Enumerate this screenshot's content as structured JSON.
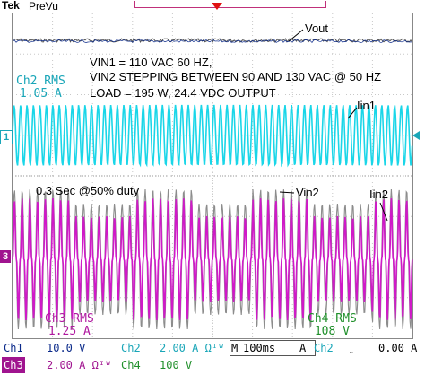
{
  "header": {
    "brand": "Tek",
    "mode": "PreVu"
  },
  "annotations": {
    "vout": "Vout",
    "line1": "VIN1 = 110 VAC 60 HZ,",
    "line2": "VIN2 STEPPING BETWEEN 90 AND 130 VAC @ 50 HZ",
    "line3": "LOAD = 195 W, 24.4 VDC OUTPUT",
    "iin1": "Iin1",
    "duty": "0.3 Sec @50% duty",
    "vin2": "Vin2",
    "iin2": "Iin2"
  },
  "measurements": {
    "ch2_rms_label": "Ch2 RMS",
    "ch2_rms_value": "1.05 A",
    "ch3_rms_label": "Ch3 RMS",
    "ch3_rms_value": "1.25 A",
    "ch4_rms_label": "Ch4 RMS",
    "ch4_rms_value": "108 V"
  },
  "channel_markers": {
    "ch1": "1",
    "ch3": "3"
  },
  "status_bar": {
    "ch1_label": "Ch1",
    "ch1_scale": "10.0 V",
    "ch2_label": "Ch2",
    "ch2_scale": "2.00 A Ωᴵᵂ",
    "ch3_label": "Ch3",
    "ch3_scale": "2.00 A Ωᴵᵂ",
    "ch4_label": "Ch4",
    "ch4_scale": "100 V",
    "timebase_label": "M",
    "timebase": "100ms",
    "trigger_source": "A",
    "trigger_channel": "Ch2",
    "trigger_slope_icon": "falling-edge-icon",
    "trigger_level": "0.00 A"
  },
  "colors": {
    "ch1": "#0b2a8a",
    "ch2": "#1ad6e8",
    "ch3": "#d019c8",
    "ch4": "#8c8c8c",
    "trigger": "#e01010"
  }
}
